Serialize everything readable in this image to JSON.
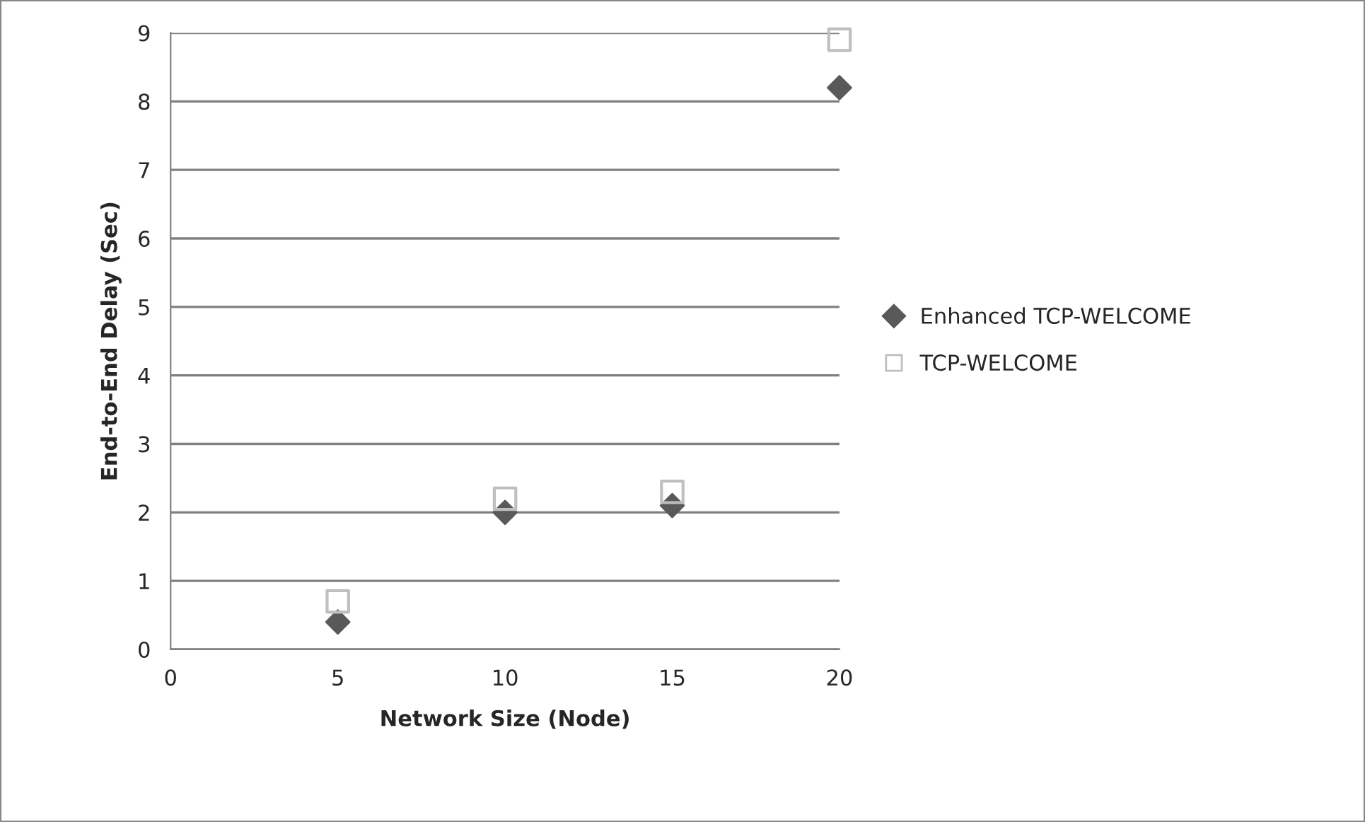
{
  "chart_data": {
    "type": "scatter",
    "xlabel": "Network Size (Node)",
    "ylabel": "End-to-End Delay (Sec)",
    "x": [
      5,
      10,
      15,
      20
    ],
    "series": [
      {
        "name": "Enhanced TCP-WELCOME",
        "color": "#595959",
        "marker": "diamond",
        "values": [
          0.4,
          2.0,
          2.1,
          8.2
        ]
      },
      {
        "name": "TCP-WELCOME",
        "color": "#bfbfbf",
        "marker": "square",
        "values": [
          0.7,
          2.2,
          2.3,
          8.9
        ]
      }
    ],
    "xlim": [
      0,
      20
    ],
    "xticks": [
      0,
      5,
      10,
      15,
      20
    ],
    "ylim": [
      0,
      9
    ],
    "yticks": [
      0,
      1,
      2,
      3,
      4,
      5,
      6,
      7,
      8,
      9
    ],
    "grid": "y",
    "legend": "right"
  }
}
